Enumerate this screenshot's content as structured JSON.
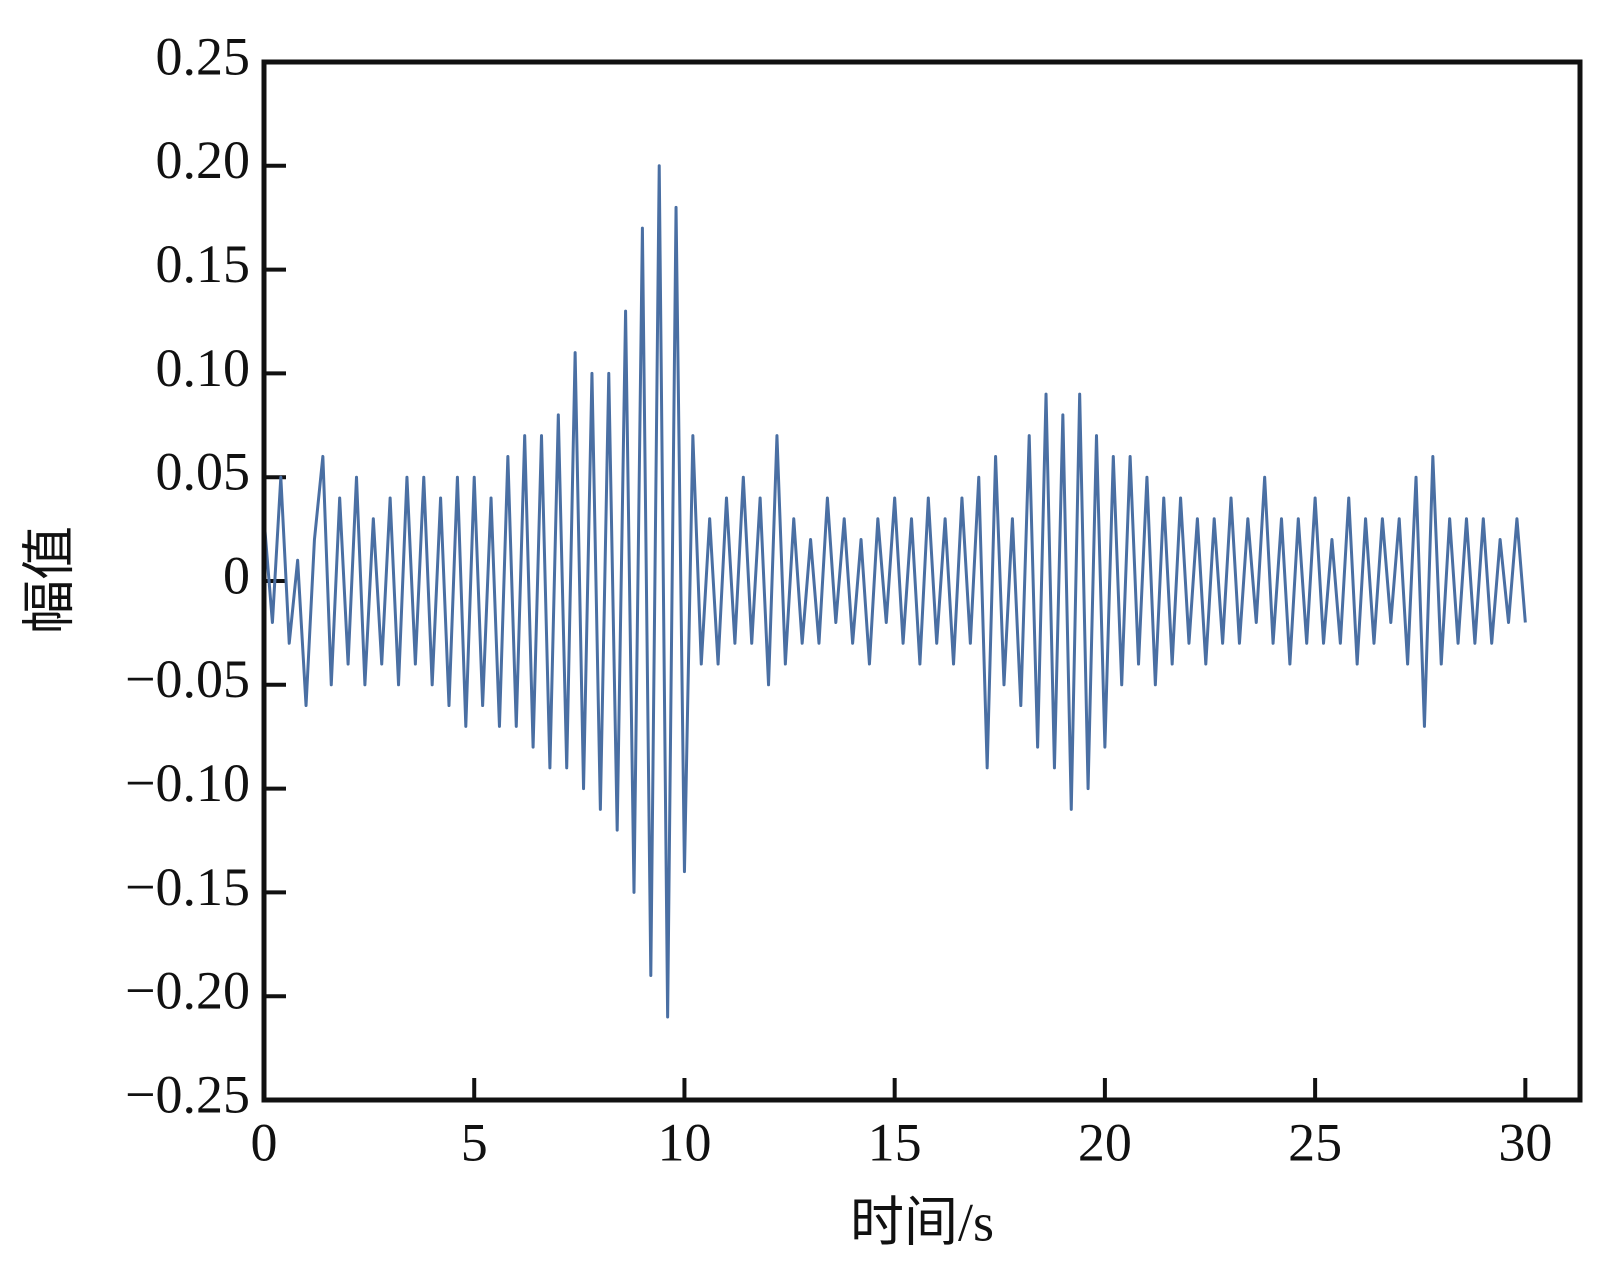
{
  "chart_data": {
    "type": "line",
    "x_label": "时间/s",
    "y_label": "幅值",
    "xlim": [
      0,
      31.3
    ],
    "ylim": [
      -0.25,
      0.25
    ],
    "xticks": [
      0,
      5,
      10,
      15,
      20,
      25,
      30
    ],
    "yticks": [
      {
        "value": 0.25,
        "label": "0.25"
      },
      {
        "value": 0.2,
        "label": "0.20"
      },
      {
        "value": 0.15,
        "label": "0.15"
      },
      {
        "value": 0.1,
        "label": "0.10"
      },
      {
        "value": 0.05,
        "label": "0.05"
      },
      0,
      {
        "value": -0.05,
        "label": "−0.05"
      },
      {
        "value": -0.1,
        "label": "−0.10"
      },
      {
        "value": -0.15,
        "label": "−0.15"
      },
      {
        "value": -0.2,
        "label": "−0.20"
      },
      {
        "value": -0.25,
        "label": "−0.25"
      }
    ],
    "x": [
      0,
      0.2,
      0.4,
      0.6,
      0.8,
      1,
      1.2,
      1.4,
      1.6,
      1.8,
      2,
      2.2,
      2.4,
      2.6,
      2.8,
      3,
      3.2,
      3.4,
      3.6,
      3.8,
      4,
      4.2,
      4.4,
      4.6,
      4.8,
      5,
      5.2,
      5.4,
      5.6,
      5.8,
      6,
      6.2,
      6.4,
      6.6,
      6.8,
      7,
      7.2,
      7.4,
      7.6,
      7.8,
      8,
      8.2,
      8.4,
      8.6,
      8.8,
      9,
      9.2,
      9.4,
      9.6,
      9.8,
      10,
      10.2,
      10.4,
      10.6,
      10.8,
      11,
      11.2,
      11.4,
      11.6,
      11.8,
      12,
      12.2,
      12.4,
      12.6,
      12.8,
      13,
      13.2,
      13.4,
      13.6,
      13.8,
      14,
      14.2,
      14.4,
      14.6,
      14.8,
      15,
      15.2,
      15.4,
      15.6,
      15.8,
      16,
      16.2,
      16.4,
      16.6,
      16.8,
      17,
      17.2,
      17.4,
      17.6,
      17.8,
      18,
      18.2,
      18.4,
      18.6,
      18.8,
      19,
      19.2,
      19.4,
      19.6,
      19.8,
      20,
      20.2,
      20.4,
      20.6,
      20.8,
      21,
      21.2,
      21.4,
      21.6,
      21.8,
      22,
      22.2,
      22.4,
      22.6,
      22.8,
      23,
      23.2,
      23.4,
      23.6,
      23.8,
      24,
      24.2,
      24.4,
      24.6,
      24.8,
      25,
      25.2,
      25.4,
      25.6,
      25.8,
      26,
      26.2,
      26.4,
      26.6,
      26.8,
      27,
      27.2,
      27.4,
      27.6,
      27.8,
      28,
      28.2,
      28.4,
      28.6,
      28.8,
      29,
      29.2,
      29.4,
      29.6,
      29.8,
      30
    ],
    "series": [
      {
        "color": "#4a6fa3",
        "values": [
          0.03,
          -0.02,
          0.05,
          -0.03,
          0.01,
          -0.06,
          0.02,
          0.06,
          -0.05,
          0.04,
          -0.04,
          0.05,
          -0.05,
          0.03,
          -0.04,
          0.04,
          -0.05,
          0.05,
          -0.04,
          0.05,
          -0.05,
          0.04,
          -0.06,
          0.05,
          -0.07,
          0.05,
          -0.06,
          0.04,
          -0.07,
          0.06,
          -0.07,
          0.07,
          -0.08,
          0.07,
          -0.09,
          0.08,
          -0.09,
          0.11,
          -0.1,
          0.1,
          -0.11,
          0.1,
          -0.12,
          0.13,
          -0.15,
          0.17,
          -0.19,
          0.2,
          -0.21,
          0.18,
          -0.14,
          0.07,
          -0.04,
          0.03,
          -0.04,
          0.04,
          -0.03,
          0.05,
          -0.03,
          0.04,
          -0.05,
          0.07,
          -0.04,
          0.03,
          -0.03,
          0.02,
          -0.03,
          0.04,
          -0.02,
          0.03,
          -0.03,
          0.02,
          -0.04,
          0.03,
          -0.02,
          0.04,
          -0.03,
          0.03,
          -0.04,
          0.04,
          -0.03,
          0.03,
          -0.04,
          0.04,
          -0.03,
          0.05,
          -0.09,
          0.06,
          -0.05,
          0.03,
          -0.06,
          0.07,
          -0.08,
          0.09,
          -0.09,
          0.08,
          -0.11,
          0.09,
          -0.1,
          0.07,
          -0.08,
          0.06,
          -0.05,
          0.06,
          -0.04,
          0.05,
          -0.05,
          0.04,
          -0.04,
          0.04,
          -0.03,
          0.03,
          -0.04,
          0.03,
          -0.03,
          0.04,
          -0.03,
          0.03,
          -0.02,
          0.05,
          -0.03,
          0.03,
          -0.04,
          0.03,
          -0.03,
          0.04,
          -0.03,
          0.02,
          -0.03,
          0.04,
          -0.04,
          0.03,
          -0.03,
          0.03,
          -0.02,
          0.03,
          -0.04,
          0.05,
          -0.07,
          0.06,
          -0.04,
          0.03,
          -0.03,
          0.03,
          -0.03,
          0.03,
          -0.03,
          0.02,
          -0.02,
          0.03,
          -0.02
        ]
      }
    ]
  }
}
